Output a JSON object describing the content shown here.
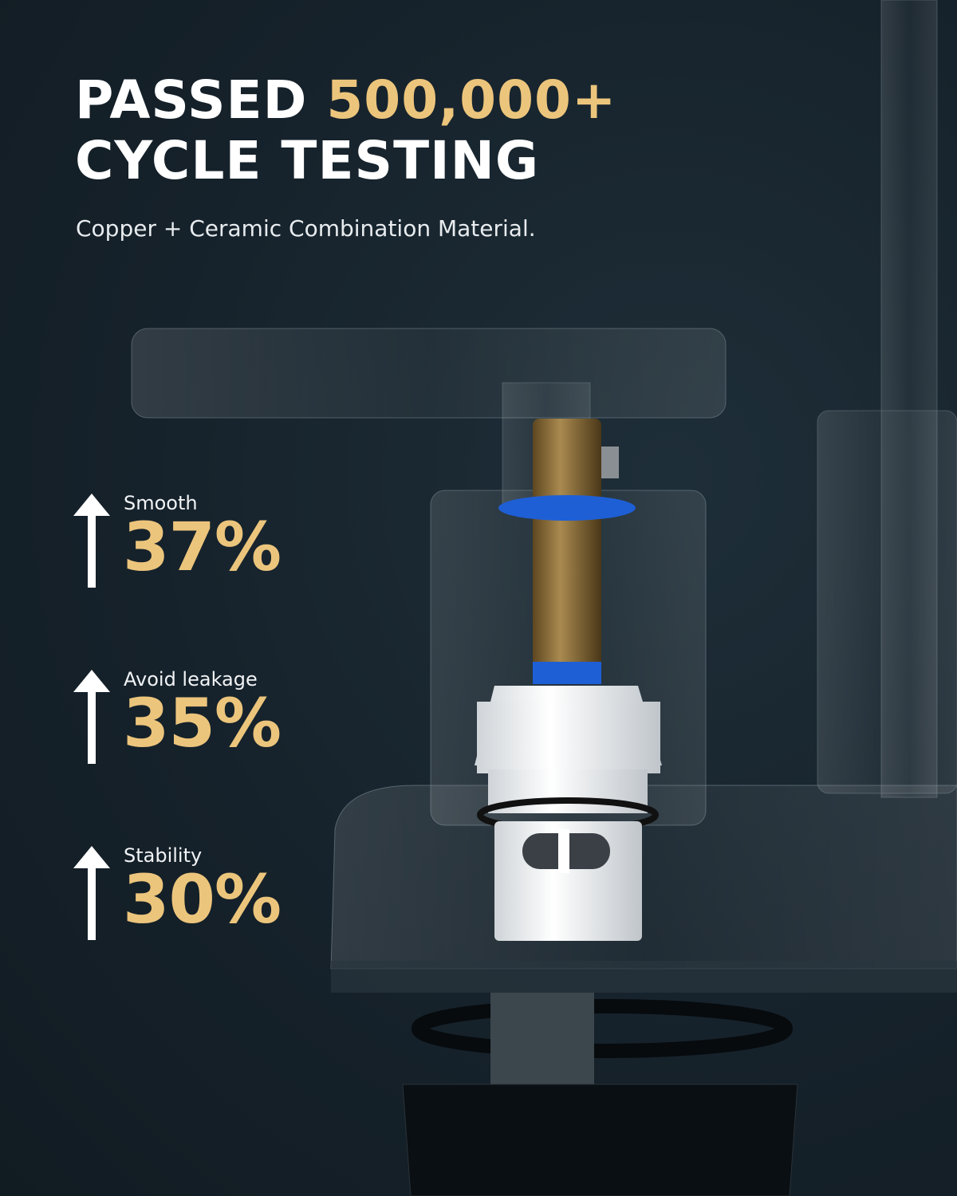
{
  "headline": {
    "prefix": "PASSED ",
    "highlight": "500,000+",
    "line2": "CYCLE TESTING"
  },
  "subtitle": "Copper + Ceramic Combination Material.",
  "stats": [
    {
      "label": "Smooth",
      "value": "37%",
      "icon": "arrow-up-icon"
    },
    {
      "label": "Avoid leakage",
      "value": "35%",
      "icon": "arrow-up-icon"
    },
    {
      "label": "Stability",
      "value": "30%",
      "icon": "arrow-up-icon"
    }
  ],
  "colors": {
    "background": "#16222b",
    "accent": "#ecc57c",
    "text": "#ffffff",
    "seal": "#1e5fd6",
    "brass": "#8a6a34"
  }
}
